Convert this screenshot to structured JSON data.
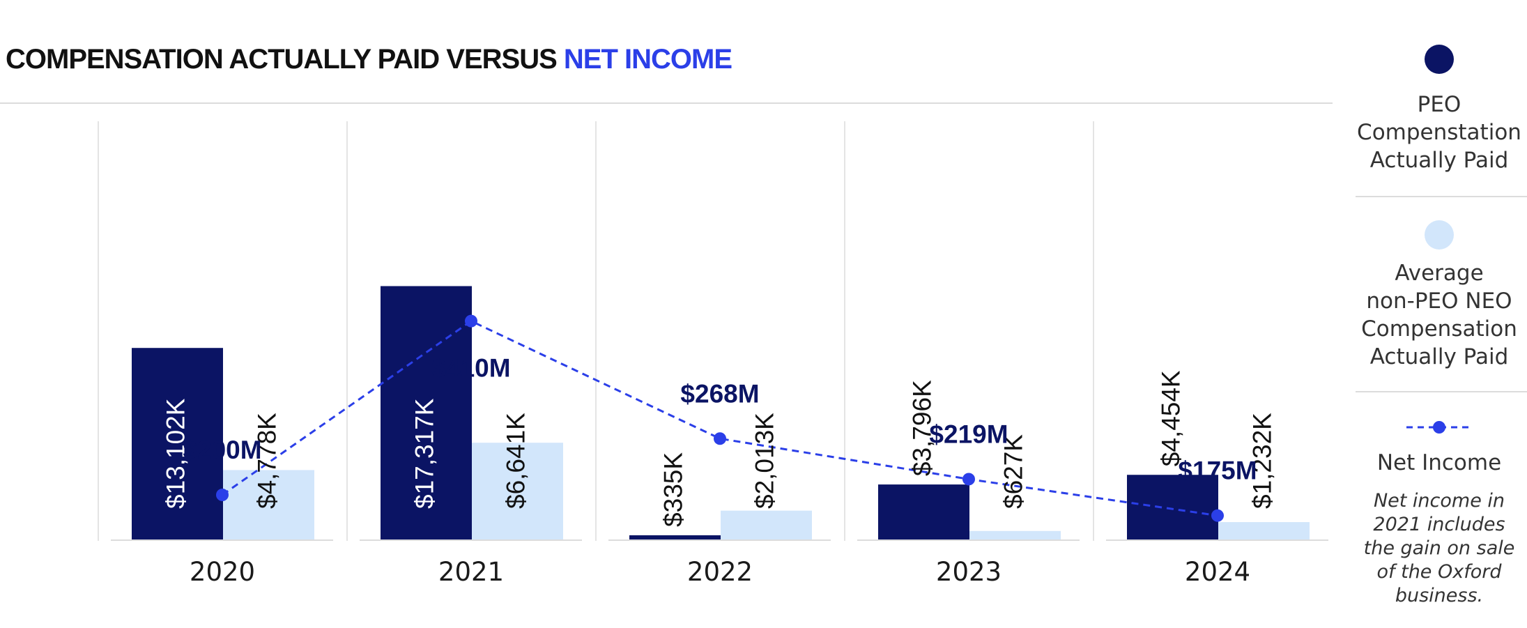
{
  "title_part1": "COMPENSATION ACTUALLY PAID VERSUS ",
  "title_part2": "NET INCOME",
  "colors": {
    "peo": "#0b1464",
    "neo": "#d2e6fb",
    "net_income": "#2b3fe8",
    "title": "#111111",
    "grid": "#dcdcdc"
  },
  "legend": {
    "peo_lines": [
      "PEO",
      "Compenstation",
      "Actually Paid"
    ],
    "neo_lines": [
      "Average",
      "non-PEO NEO",
      "Compensation",
      "Actually Paid"
    ],
    "net_income_label": "Net Income",
    "note_lines": [
      "Net income in",
      "2021 includes",
      "the gain on sale",
      "of the Oxford",
      "business."
    ]
  },
  "chart_data": {
    "type": "bar",
    "categories": [
      "2020",
      "2021",
      "2022",
      "2023",
      "2024"
    ],
    "series": [
      {
        "name": "PEO Compenstation Actually Paid",
        "type": "bar",
        "values": [
          13102,
          17317,
          335,
          3796,
          4454
        ],
        "labels": [
          "$13,102K",
          "$17,317K",
          "$335K",
          "$3,796K",
          "$4,454K"
        ]
      },
      {
        "name": "Average non-PEO NEO Compensation Actually Paid",
        "type": "bar",
        "values": [
          4778,
          6641,
          2013,
          627,
          1232
        ],
        "labels": [
          "$4,778K",
          "$6,641K",
          "$2,013K",
          "$627K",
          "$1,232K"
        ]
      },
      {
        "name": "Net Income",
        "type": "line",
        "values": [
          200,
          410,
          268,
          219,
          175
        ],
        "labels": [
          "$200M",
          "$410M",
          "$268M",
          "$219M",
          "$175M"
        ]
      }
    ]
  }
}
